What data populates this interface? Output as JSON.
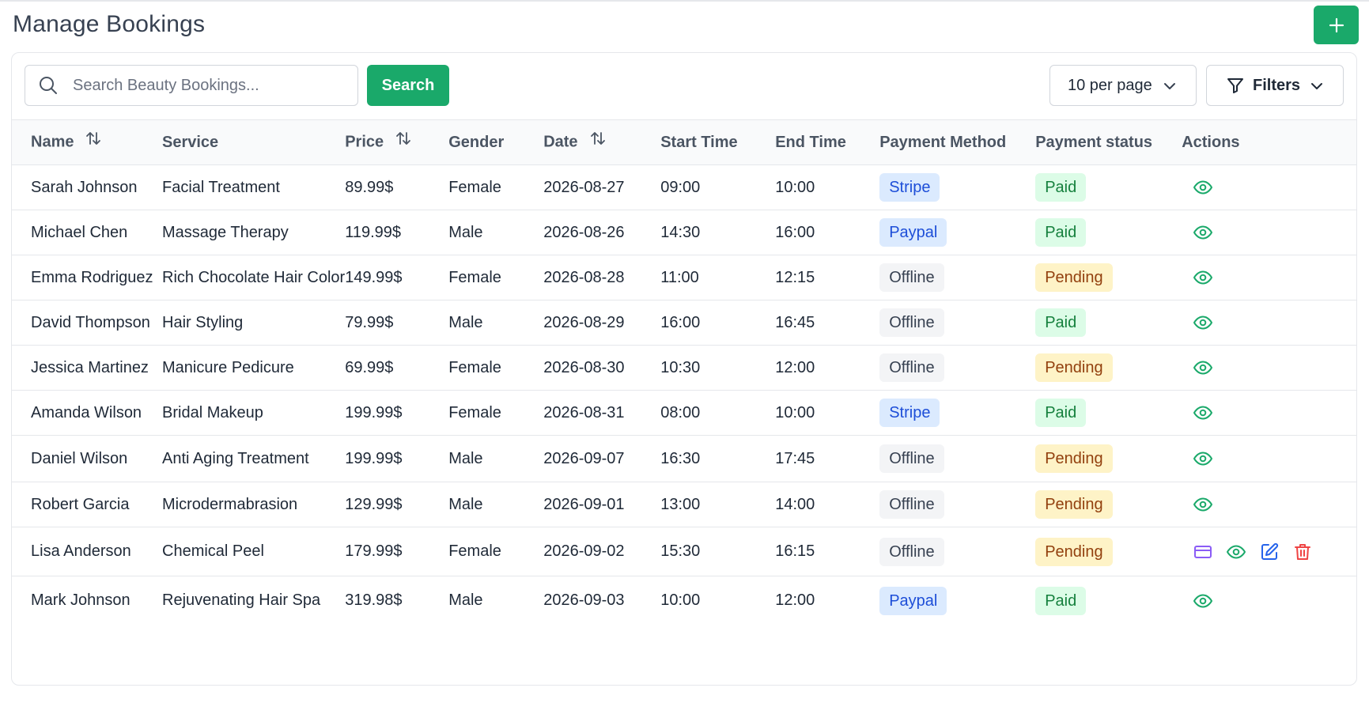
{
  "header": {
    "title": "Manage Bookings",
    "add_icon": "plus-icon"
  },
  "toolbar": {
    "search_placeholder": "Search Beauty Bookings...",
    "search_icon": "search-icon",
    "search_label": "Search",
    "per_page_label": "10 per page",
    "filters_label": "Filters",
    "filter_icon": "filter-icon"
  },
  "table": {
    "columns": [
      {
        "label": "Name",
        "sortable": true
      },
      {
        "label": "Service",
        "sortable": false
      },
      {
        "label": "Price",
        "sortable": true
      },
      {
        "label": "Gender",
        "sortable": false
      },
      {
        "label": "Date",
        "sortable": true
      },
      {
        "label": "Start Time",
        "sortable": false
      },
      {
        "label": "End Time",
        "sortable": false
      },
      {
        "label": "Payment Method",
        "sortable": false
      },
      {
        "label": "Payment status",
        "sortable": false
      },
      {
        "label": "Actions",
        "sortable": false
      }
    ],
    "rows": [
      {
        "name": "Sarah Johnson",
        "service": "Facial Treatment",
        "price": "89.99$",
        "gender": "Female",
        "date": "2026-08-27",
        "start": "09:00",
        "end": "10:00",
        "payment_method": "Stripe",
        "payment_status": "Paid",
        "actions": [
          "view"
        ]
      },
      {
        "name": "Michael Chen",
        "service": "Massage Therapy",
        "price": "119.99$",
        "gender": "Male",
        "date": "2026-08-26",
        "start": "14:30",
        "end": "16:00",
        "payment_method": "Paypal",
        "payment_status": "Paid",
        "actions": [
          "view"
        ]
      },
      {
        "name": "Emma Rodriguez",
        "service": "Rich Chocolate Hair Color",
        "price": "149.99$",
        "gender": "Female",
        "date": "2026-08-28",
        "start": "11:00",
        "end": "12:15",
        "payment_method": "Offline",
        "payment_status": "Pending",
        "actions": [
          "view"
        ]
      },
      {
        "name": "David Thompson",
        "service": "Hair Styling",
        "price": "79.99$",
        "gender": "Male",
        "date": "2026-08-29",
        "start": "16:00",
        "end": "16:45",
        "payment_method": "Offline",
        "payment_status": "Paid",
        "actions": [
          "view"
        ]
      },
      {
        "name": "Jessica Martinez",
        "service": "Manicure Pedicure",
        "price": "69.99$",
        "gender": "Female",
        "date": "2026-08-30",
        "start": "10:30",
        "end": "12:00",
        "payment_method": "Offline",
        "payment_status": "Pending",
        "actions": [
          "view"
        ]
      },
      {
        "name": "Amanda Wilson",
        "service": "Bridal Makeup",
        "price": "199.99$",
        "gender": "Female",
        "date": "2026-08-31",
        "start": "08:00",
        "end": "10:00",
        "payment_method": "Stripe",
        "payment_status": "Paid",
        "actions": [
          "view"
        ]
      },
      {
        "name": "Daniel Wilson",
        "service": "Anti Aging Treatment",
        "price": "199.99$",
        "gender": "Male",
        "date": "2026-09-07",
        "start": "16:30",
        "end": "17:45",
        "payment_method": "Offline",
        "payment_status": "Pending",
        "actions": [
          "view"
        ]
      },
      {
        "name": "Robert Garcia",
        "service": "Microdermabrasion",
        "price": "129.99$",
        "gender": "Male",
        "date": "2026-09-01",
        "start": "13:00",
        "end": "14:00",
        "payment_method": "Offline",
        "payment_status": "Pending",
        "actions": [
          "view"
        ]
      },
      {
        "name": "Lisa Anderson",
        "service": "Chemical Peel",
        "price": "179.99$",
        "gender": "Female",
        "date": "2026-09-02",
        "start": "15:30",
        "end": "16:15",
        "payment_method": "Offline",
        "payment_status": "Pending",
        "actions": [
          "payment",
          "view",
          "edit",
          "delete"
        ]
      },
      {
        "name": "Mark Johnson",
        "service": "Rejuvenating Hair Spa",
        "price": "319.98$",
        "gender": "Male",
        "date": "2026-09-03",
        "start": "10:00",
        "end": "12:00",
        "payment_method": "Paypal",
        "payment_status": "Paid",
        "actions": [
          "view"
        ]
      }
    ]
  },
  "colors": {
    "accent": "#1aa96a",
    "view_icon": "#1aa96a",
    "payment_icon": "#8b5cf6",
    "edit_icon": "#2563eb",
    "delete_icon": "#ef4444"
  }
}
